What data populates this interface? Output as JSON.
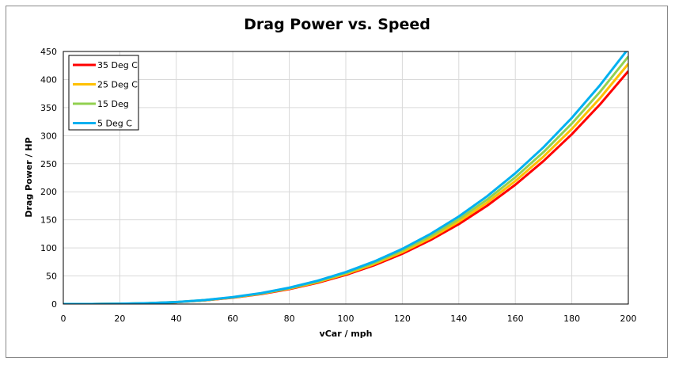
{
  "chart_data": {
    "type": "line",
    "title": "Drag Power vs. Speed",
    "xlabel": "vCar / mph",
    "ylabel": "Drag Power / HP",
    "xlim": [
      0,
      200
    ],
    "ylim": [
      0,
      450
    ],
    "xticks": [
      0,
      20,
      40,
      60,
      80,
      100,
      120,
      140,
      160,
      180,
      200
    ],
    "yticks": [
      0,
      50,
      100,
      150,
      200,
      250,
      300,
      350,
      400,
      450
    ],
    "grid": true,
    "legend": "top-left",
    "x": [
      0,
      10,
      20,
      30,
      40,
      50,
      60,
      70,
      80,
      90,
      100,
      110,
      120,
      130,
      140,
      150,
      160,
      170,
      180,
      190,
      200
    ],
    "series": [
      {
        "name": "35 Deg C",
        "color": "#ff0000",
        "values": [
          0,
          0.05,
          0.4,
          1.4,
          3.3,
          6.5,
          11.2,
          17.8,
          26.6,
          37.8,
          51.9,
          69.0,
          89.6,
          114.0,
          142.3,
          175.1,
          212.5,
          254.9,
          302.5,
          355.8,
          415
        ]
      },
      {
        "name": "25 Deg C",
        "color": "#ffc000",
        "values": [
          0,
          0.05,
          0.4,
          1.4,
          3.4,
          6.7,
          11.6,
          18.4,
          27.4,
          39.0,
          53.5,
          71.2,
          92.4,
          117.5,
          146.8,
          180.6,
          219.1,
          262.8,
          312.0,
          366.9,
          428
        ]
      },
      {
        "name": "15 Deg",
        "color": "#92d050",
        "values": [
          0,
          0.06,
          0.4,
          1.5,
          3.5,
          6.9,
          11.9,
          18.9,
          28.2,
          40.2,
          55.1,
          73.4,
          95.3,
          121.1,
          151.3,
          186.0,
          225.8,
          270.8,
          321.5,
          378.1,
          441
        ]
      },
      {
        "name": "5 Deg C",
        "color": "#00b0f0",
        "values": [
          0,
          0.06,
          0.5,
          1.5,
          3.6,
          7.1,
          12.3,
          19.5,
          29.1,
          41.5,
          56.9,
          75.7,
          98.3,
          125.0,
          156.1,
          191.9,
          233.0,
          279.4,
          331.7,
          390.1,
          455
        ]
      }
    ]
  }
}
